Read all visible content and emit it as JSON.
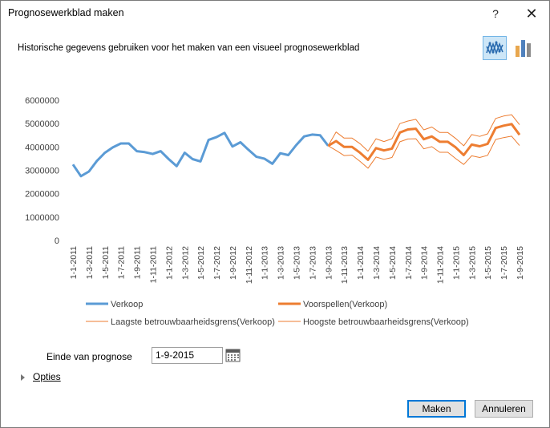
{
  "window": {
    "title": "Prognosewerkblad maken",
    "help_glyph": "?",
    "close_glyph": "✕"
  },
  "description": "Historische gegevens gebruiken voor het maken van een visueel prognosewerkblad",
  "chart_type_options": [
    {
      "name": "line-chart-icon",
      "selected": true
    },
    {
      "name": "column-chart-icon",
      "selected": false
    }
  ],
  "chart_data": {
    "type": "line",
    "title": "",
    "xlabel": "",
    "ylabel": "",
    "ylim": [
      0,
      6000000
    ],
    "y_ticks": [
      "6000000",
      "5000000",
      "4000000",
      "3000000",
      "2000000",
      "1000000",
      "0"
    ],
    "x_tick_labels": [
      "1-1-2011",
      "1-3-2011",
      "1-5-2011",
      "1-7-2011",
      "1-9-2011",
      "1-11-2011",
      "1-1-2012",
      "1-3-2012",
      "1-5-2012",
      "1-7-2012",
      "1-9-2012",
      "1-11-2012",
      "1-1-2013",
      "1-3-2013",
      "1-5-2013",
      "1-7-2013",
      "1-9-2013",
      "1-11-2013",
      "1-1-2014",
      "1-3-2014",
      "1-5-2014",
      "1-7-2014",
      "1-9-2014",
      "1-11-2014",
      "1-1-2015",
      "1-3-2015",
      "1-5-2015",
      "1-7-2015",
      "1-9-2015"
    ],
    "x_start": "1-1-2011",
    "x_end": "1-9-2015",
    "grid": false,
    "legend_position": "bottom",
    "series": [
      {
        "name": "Verkoop",
        "color": "#5b9bd5",
        "start_index": 0,
        "values": [
          3250000,
          2750000,
          2950000,
          3400000,
          3750000,
          3980000,
          4150000,
          4150000,
          3820000,
          3780000,
          3700000,
          3820000,
          3480000,
          3180000,
          3750000,
          3480000,
          3380000,
          4300000,
          4420000,
          4600000,
          4020000,
          4200000,
          3880000,
          3580000,
          3500000,
          3280000,
          3730000,
          3650000,
          4080000,
          4450000,
          4530000,
          4500000,
          4050000
        ]
      },
      {
        "name": "Voorspellen(Verkoop)",
        "color": "#ed7d31",
        "start_index": 32,
        "values": [
          4050000,
          4250000,
          4000000,
          4000000,
          3750000,
          3450000,
          3950000,
          3850000,
          3930000,
          4620000,
          4750000,
          4780000,
          4330000,
          4450000,
          4220000,
          4220000,
          3980000,
          3650000,
          4100000,
          4030000,
          4130000,
          4810000,
          4910000,
          4980000,
          4520000
        ]
      },
      {
        "name": "Laagste betrouwbaarheidsgrens(Verkoop)",
        "color": "#ed7d31",
        "start_index": 32,
        "values": [
          4050000,
          3850000,
          3630000,
          3650000,
          3380000,
          3090000,
          3570000,
          3470000,
          3550000,
          4220000,
          4340000,
          4350000,
          3920000,
          4010000,
          3770000,
          3770000,
          3500000,
          3250000,
          3620000,
          3550000,
          3640000,
          4320000,
          4400000,
          4460000,
          4060000
        ]
      },
      {
        "name": "Hoogste betrouwbaarheidsgrens(Verkoop)",
        "color": "#ed7d31",
        "start_index": 32,
        "values": [
          4050000,
          4640000,
          4380000,
          4380000,
          4140000,
          3820000,
          4350000,
          4230000,
          4350000,
          5000000,
          5110000,
          5180000,
          4730000,
          4850000,
          4620000,
          4620000,
          4360000,
          4050000,
          4530000,
          4450000,
          4560000,
          5220000,
          5320000,
          5380000,
          4950000
        ]
      }
    ]
  },
  "legend": {
    "verkoop": "Verkoop",
    "voorspellen": "Voorspellen(Verkoop)",
    "laagste": "Laagste betrouwbaarheidsgrens(Verkoop)",
    "hoogste": "Hoogste betrouwbaarheidsgrens(Verkoop)"
  },
  "prognose": {
    "label": "Einde van prognose",
    "value": "1-9-2015"
  },
  "options_label": "Opties",
  "buttons": {
    "ok": "Maken",
    "cancel": "Annuleren"
  }
}
